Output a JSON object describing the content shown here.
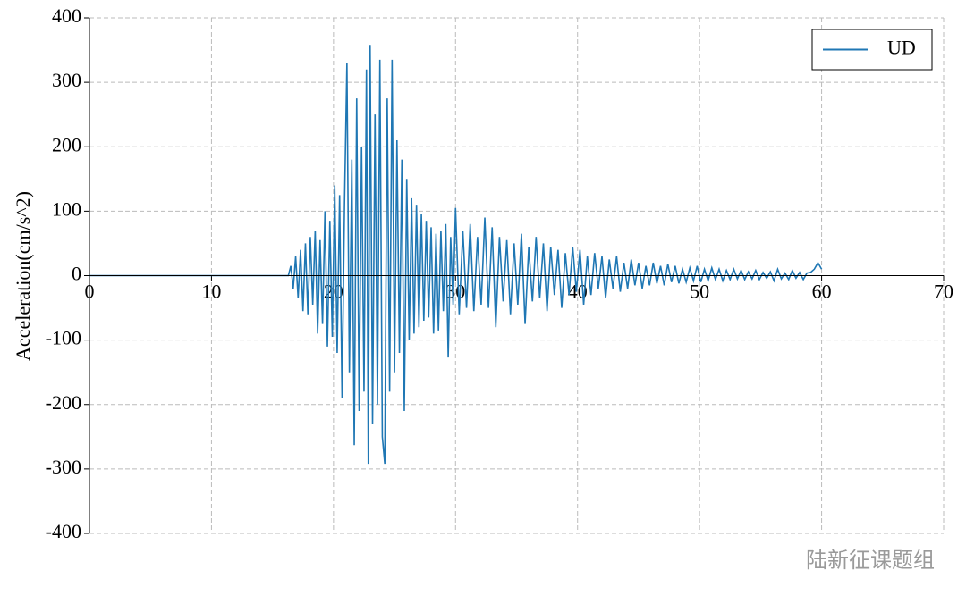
{
  "chart_data": {
    "type": "line",
    "ylabel": "Acceleration(cm/s^2)",
    "watermark": "陆新征课题组",
    "x": [
      0,
      16.3,
      16.5,
      16.7,
      16.9,
      17.1,
      17.3,
      17.5,
      17.7,
      17.9,
      18.1,
      18.3,
      18.5,
      18.7,
      18.9,
      19.1,
      19.3,
      19.5,
      19.7,
      19.9,
      20.1,
      20.3,
      20.5,
      20.7,
      20.9,
      21.1,
      21.3,
      21.5,
      21.7,
      21.9,
      22.1,
      22.3,
      22.5,
      22.7,
      22.85,
      23.0,
      23.2,
      23.4,
      23.6,
      23.8,
      24.0,
      24.2,
      24.4,
      24.6,
      24.8,
      25.0,
      25.2,
      25.4,
      25.6,
      25.8,
      26.0,
      26.2,
      26.4,
      26.6,
      26.8,
      27.0,
      27.2,
      27.4,
      27.6,
      27.8,
      28.0,
      28.2,
      28.4,
      28.6,
      28.8,
      29.0,
      29.2,
      29.4,
      29.6,
      29.8,
      30.0,
      30.3,
      30.6,
      30.9,
      31.2,
      31.5,
      31.8,
      32.1,
      32.4,
      32.7,
      33.0,
      33.3,
      33.6,
      33.9,
      34.2,
      34.5,
      34.8,
      35.1,
      35.4,
      35.7,
      36.0,
      36.3,
      36.6,
      36.9,
      37.2,
      37.5,
      37.8,
      38.1,
      38.4,
      38.7,
      39.0,
      39.3,
      39.6,
      39.9,
      40.2,
      40.5,
      40.8,
      41.1,
      41.4,
      41.7,
      42.0,
      42.3,
      42.6,
      42.9,
      43.2,
      43.5,
      43.8,
      44.1,
      44.4,
      44.7,
      45.0,
      45.3,
      45.6,
      45.9,
      46.2,
      46.5,
      46.8,
      47.1,
      47.4,
      47.7,
      48.0,
      48.3,
      48.6,
      48.9,
      49.2,
      49.5,
      49.8,
      50.1,
      50.4,
      50.7,
      51.0,
      51.3,
      51.6,
      51.9,
      52.2,
      52.5,
      52.8,
      53.1,
      53.4,
      53.7,
      54.0,
      54.3,
      54.6,
      54.9,
      55.2,
      55.5,
      55.8,
      56.1,
      56.4,
      56.7,
      57.0,
      57.3,
      57.6,
      57.9,
      58.2,
      58.5,
      58.8,
      59.1,
      59.4,
      59.7,
      60.0
    ],
    "series": [
      {
        "name": "UD",
        "color": "#1f77b4",
        "values": [
          0,
          0,
          15,
          -20,
          30,
          -35,
          40,
          -55,
          50,
          -60,
          60,
          -45,
          70,
          -90,
          55,
          -75,
          100,
          -110,
          85,
          -95,
          140,
          -120,
          125,
          -190,
          110,
          330,
          -150,
          180,
          -263,
          275,
          -210,
          200,
          -180,
          320,
          -292,
          358,
          -230,
          250,
          -200,
          335,
          -250,
          -292,
          275,
          -180,
          335,
          -150,
          210,
          -120,
          180,
          -210,
          150,
          -100,
          120,
          -90,
          110,
          -80,
          95,
          -70,
          85,
          -65,
          75,
          -90,
          65,
          -85,
          70,
          -55,
          80,
          -127,
          60,
          -45,
          105,
          -60,
          70,
          -50,
          80,
          -55,
          60,
          -45,
          90,
          -50,
          75,
          -80,
          60,
          -40,
          55,
          -60,
          50,
          -45,
          65,
          -75,
          45,
          -40,
          60,
          -35,
          50,
          -55,
          45,
          -30,
          40,
          -50,
          35,
          -30,
          45,
          -25,
          40,
          -45,
          30,
          -30,
          35,
          -20,
          30,
          -35,
          25,
          -20,
          30,
          -25,
          20,
          -20,
          25,
          -15,
          20,
          -20,
          15,
          -15,
          20,
          -12,
          15,
          -15,
          18,
          -10,
          15,
          -12,
          10,
          -10,
          12,
          -8,
          15,
          -10,
          10,
          -8,
          12,
          -6,
          10,
          -8,
          8,
          -6,
          10,
          -5,
          8,
          -6,
          6,
          -5,
          8,
          -6,
          5,
          -4,
          6,
          -8,
          10,
          -5,
          4,
          -6,
          8,
          -4,
          5,
          -6,
          4,
          5,
          10,
          20,
          10
        ]
      }
    ],
    "xlim": [
      0,
      70
    ],
    "xticks": [
      0,
      10,
      20,
      30,
      40,
      50,
      60,
      70
    ],
    "ylim": [
      -400,
      400
    ],
    "yticks": [
      -400,
      -300,
      -200,
      -100,
      0,
      100,
      200,
      300,
      400
    ],
    "grid": true,
    "legend": "upper right"
  }
}
